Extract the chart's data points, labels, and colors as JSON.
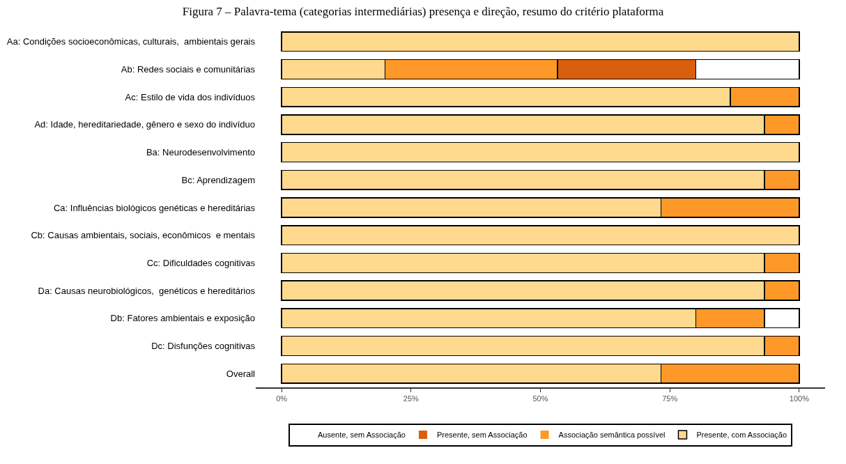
{
  "chart_data": {
    "type": "bar",
    "orientation": "horizontal",
    "stacked": true,
    "title": "Figura 7 – Palavra-tema (categorias intermediárias) presença e direção, resumo do critério plataforma",
    "categories": [
      "Aa: Condições socioeconômicas, culturais,  ambientais gerais",
      "Ab: Redes sociais e comunitárias",
      "Ac: Estilo de vida dos indivíduos",
      "Ad: Idade, hereditariedade, gênero e sexo do indivíduo",
      "Ba: Neurodesenvolvimento",
      "Bc: Aprendizagem",
      "Ca: Influências biológicos genéticas e hereditárias",
      "Cb: Causas ambientais, sociais, econômicos  e mentais",
      "Cc: Dificuldades cognitivas",
      "Da: Causas neurobiológicos,  genéticos e hereditários",
      "Db: Fatores ambientais e exposição",
      "Dc: Disfunções cognitivas",
      "Overall"
    ],
    "series": [
      {
        "name": "Presente, com Associação",
        "color": "#fed98e",
        "values": [
          100,
          20,
          86.7,
          93.3,
          100,
          93.3,
          73.3,
          100,
          93.3,
          93.3,
          80,
          93.3,
          73.3
        ]
      },
      {
        "name": "Associação semântica possível",
        "color": "#fe9929",
        "values": [
          0,
          33.3,
          13.3,
          6.7,
          0,
          6.7,
          26.7,
          0,
          6.7,
          6.7,
          13.3,
          6.7,
          26.7
        ]
      },
      {
        "name": "Presente, sem Associação",
        "color": "#d95f0e",
        "values": [
          0,
          26.7,
          0,
          0,
          0,
          0,
          0,
          0,
          0,
          0,
          0,
          0,
          0
        ]
      },
      {
        "name": "Ausente, sem Associação",
        "color": "#ffffff",
        "values": [
          0,
          20,
          0,
          0,
          0,
          0,
          0,
          0,
          0,
          0,
          6.7,
          0,
          0
        ]
      }
    ],
    "xlim": [
      -5,
      105
    ],
    "xticks": [
      {
        "value": 0,
        "label": "0%"
      },
      {
        "value": 25,
        "label": "25%"
      },
      {
        "value": 50,
        "label": "50%"
      },
      {
        "value": 75,
        "label": "75%"
      },
      {
        "value": 100,
        "label": "100%"
      }
    ],
    "legend": "bottom"
  }
}
